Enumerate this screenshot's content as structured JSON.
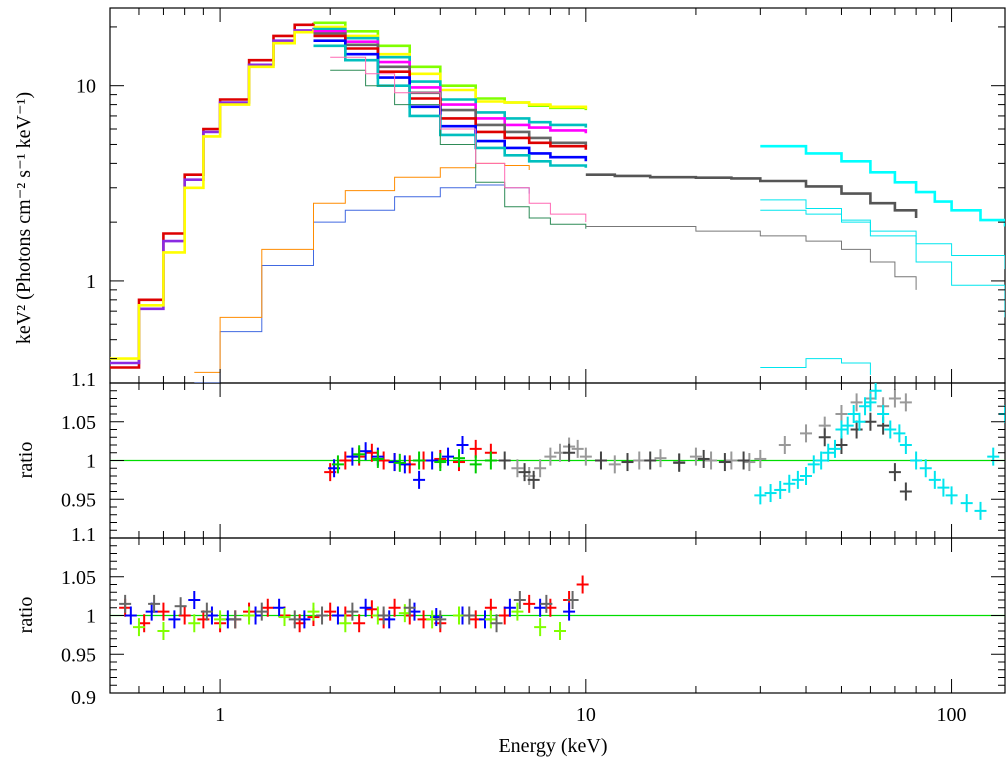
{
  "chart_data": [
    {
      "panel": "spectrum",
      "type": "line",
      "xscale": "log",
      "yscale": "log",
      "xlim": [
        0.5,
        140
      ],
      "ylim": [
        0.3,
        25
      ],
      "ylabel": "keV² (Photons cm⁻² s⁻¹ keV⁻¹)",
      "xlabel": "",
      "yticklabels": [
        "1",
        "10"
      ],
      "grid": false,
      "colors": [
        "#ff0000",
        "#8a2be2",
        "#666666",
        "#ffff00",
        "#80ff00",
        "#00bfbf",
        "#ff00ff",
        "#ff8c00",
        "#0000ff",
        "#00ff7f",
        "#999999",
        "#00ffff"
      ],
      "series": [
        {
          "color": "#dd0000",
          "x": [
            0.5,
            0.6,
            0.7,
            0.8,
            0.9,
            1.0,
            1.2,
            1.4,
            1.6,
            1.8
          ],
          "y": [
            0.36,
            0.8,
            1.75,
            3.5,
            6.0,
            8.5,
            13.5,
            18.0,
            20.5,
            21.0
          ]
        },
        {
          "color": "#8a2be2",
          "x": [
            0.5,
            0.6,
            0.7,
            0.8,
            0.9,
            1.0,
            1.2,
            1.4,
            1.6,
            1.8
          ],
          "y": [
            0.38,
            0.72,
            1.6,
            3.3,
            5.8,
            8.2,
            12.8,
            17.0,
            19.2,
            19.8
          ]
        },
        {
          "color": "#ffff00",
          "x": [
            0.5,
            0.6,
            0.7,
            0.8,
            0.9,
            1.0,
            1.2,
            1.4,
            1.6,
            1.8
          ],
          "y": [
            0.4,
            0.75,
            1.4,
            3.0,
            5.5,
            8.0,
            12.5,
            16.5,
            18.8,
            19.5
          ]
        },
        {
          "color": "#80ff00",
          "x": [
            1.8,
            2.2,
            2.7,
            3.3,
            4.0,
            5.0,
            6.0,
            7.0,
            8.0,
            10.0
          ],
          "y": [
            21.0,
            19.0,
            16.0,
            12.5,
            10.0,
            8.6,
            8.2,
            7.9,
            7.7,
            7.5
          ]
        },
        {
          "color": "#ffff00",
          "x": [
            1.8,
            2.2,
            2.7,
            3.3,
            4.0,
            5.0,
            6.0,
            7.0,
            8.0,
            10.0
          ],
          "y": [
            20.0,
            18.0,
            14.5,
            11.5,
            9.5,
            8.3,
            8.2,
            8.0,
            7.8,
            7.6
          ]
        },
        {
          "color": "#00bfbf",
          "x": [
            1.8,
            2.2,
            2.7,
            3.3,
            4.0,
            5.0,
            6.0,
            7.0,
            8.0,
            10.0
          ],
          "y": [
            19.5,
            17.5,
            14.0,
            10.5,
            8.5,
            7.3,
            6.8,
            6.5,
            6.3,
            6.1
          ]
        },
        {
          "color": "#ff00ff",
          "x": [
            1.8,
            2.2,
            2.7,
            3.3,
            4.0,
            5.0,
            6.0,
            7.0,
            8.0,
            10.0
          ],
          "y": [
            19.0,
            16.8,
            13.2,
            9.8,
            8.0,
            6.8,
            6.3,
            6.1,
            5.9,
            5.7
          ]
        },
        {
          "color": "#666666",
          "x": [
            1.8,
            2.2,
            2.7,
            3.3,
            4.0,
            5.0,
            6.0,
            7.0,
            8.0,
            10.0
          ],
          "y": [
            18.5,
            16.2,
            12.5,
            9.2,
            7.5,
            6.3,
            5.8,
            5.4,
            5.1,
            4.9
          ]
        },
        {
          "color": "#dd0000",
          "x": [
            1.8,
            2.2,
            2.7,
            3.3,
            4.0,
            5.0,
            6.0,
            7.0,
            8.0,
            10.0
          ],
          "y": [
            18.0,
            15.5,
            11.8,
            8.6,
            6.8,
            5.8,
            5.4,
            5.1,
            4.9,
            4.7
          ]
        },
        {
          "color": "#0000ff",
          "x": [
            1.8,
            2.2,
            2.7,
            3.3,
            4.0,
            5.0,
            6.0,
            7.0,
            8.0,
            10.0
          ],
          "y": [
            17.0,
            14.5,
            11.0,
            7.8,
            6.2,
            5.2,
            4.8,
            4.5,
            4.3,
            4.1
          ]
        },
        {
          "color": "#00bfbf",
          "x": [
            1.8,
            2.2,
            2.7,
            3.3,
            4.0,
            5.0,
            6.0,
            7.0,
            8.0,
            10.0
          ],
          "y": [
            16.0,
            13.5,
            10.0,
            7.0,
            5.6,
            4.8,
            4.4,
            4.1,
            3.9,
            3.8
          ]
        },
        {
          "color": "#555555",
          "x": [
            10,
            12,
            15,
            20,
            25,
            30,
            40,
            50,
            60,
            70,
            80
          ],
          "y": [
            3.5,
            3.45,
            3.4,
            3.38,
            3.35,
            3.25,
            3.05,
            2.8,
            2.5,
            2.3,
            2.1
          ]
        },
        {
          "color": "#00ffff",
          "x": [
            30,
            40,
            50,
            60,
            70,
            80,
            90,
            100,
            120,
            140
          ],
          "y": [
            4.9,
            4.5,
            4.1,
            3.6,
            3.2,
            2.85,
            2.55,
            2.3,
            2.05,
            1.9
          ]
        },
        {
          "color": "#4169e1",
          "x": [
            0.85,
            1.0,
            1.3,
            1.8,
            2.2,
            3.0,
            4.0,
            5.0,
            6.0,
            7.0
          ],
          "y": [
            0.3,
            0.55,
            1.2,
            2.0,
            2.3,
            2.7,
            3.0,
            3.1,
            3.0,
            2.8
          ]
        },
        {
          "color": "#ff8c00",
          "x": [
            0.85,
            1.0,
            1.3,
            1.8,
            2.2,
            3.0,
            4.0,
            5.0,
            6.0,
            7.0
          ],
          "y": [
            0.34,
            0.65,
            1.45,
            2.5,
            2.9,
            3.4,
            3.8,
            4.0,
            3.9,
            3.7
          ]
        },
        {
          "color": "#2e8b57",
          "x": [
            2.0,
            2.5,
            3.0,
            4.0,
            5.0,
            6.0,
            7.0,
            8.0,
            10.0
          ],
          "y": [
            12.0,
            10.0,
            8.0,
            5.0,
            3.2,
            2.4,
            2.1,
            1.95,
            1.85
          ]
        },
        {
          "color": "#ff69b4",
          "x": [
            2.0,
            2.5,
            3.0,
            4.0,
            5.0,
            6.0,
            7.0,
            8.0,
            10.0
          ],
          "y": [
            14.0,
            11.5,
            9.2,
            6.0,
            4.0,
            3.0,
            2.5,
            2.2,
            2.0
          ]
        },
        {
          "color": "#777777",
          "x": [
            10,
            20,
            30,
            40,
            50,
            60,
            70,
            80
          ],
          "y": [
            1.9,
            1.8,
            1.7,
            1.6,
            1.45,
            1.25,
            1.05,
            0.9
          ]
        },
        {
          "color": "#00e5ee",
          "x": [
            30,
            40,
            50,
            60,
            80,
            100,
            140
          ],
          "y": [
            2.3,
            2.2,
            2.0,
            1.8,
            1.55,
            1.35,
            1.15
          ]
        },
        {
          "color": "#00e5ee",
          "x": [
            30,
            40,
            50,
            60,
            80,
            100,
            140
          ],
          "y": [
            2.6,
            2.35,
            2.05,
            1.7,
            1.25,
            0.95,
            0.65
          ]
        },
        {
          "color": "#00e5ee",
          "x": [
            30,
            40,
            50,
            60
          ],
          "y": [
            0.36,
            0.4,
            0.38,
            0.33
          ]
        }
      ]
    },
    {
      "panel": "ratio-top",
      "type": "scatter",
      "xscale": "log",
      "xlim": [
        0.5,
        140
      ],
      "ylim": [
        0.9,
        1.1
      ],
      "ylabel": "ratio",
      "yticklabels": [
        "0.95",
        "1",
        "1.05",
        "1.1"
      ],
      "reference_line": 1,
      "reference_color": "#00dd00",
      "series": [
        {
          "color": "#ff0000",
          "x": [
            2.0,
            2.2,
            2.4,
            2.6,
            2.8,
            3.0,
            3.3,
            3.6,
            4.0,
            4.5,
            5.0,
            5.5
          ],
          "y": [
            0.985,
            1.0,
            1.005,
            1.01,
            1.0,
            0.998,
            0.995,
            1.0,
            1.002,
            0.998,
            1.015,
            1.01
          ]
        },
        {
          "color": "#0000ff",
          "x": [
            2.05,
            2.3,
            2.5,
            2.7,
            3.0,
            3.2,
            3.5,
            3.8,
            4.2,
            4.6
          ],
          "y": [
            0.99,
            1.005,
            1.012,
            1.005,
            0.998,
            0.995,
            0.975,
            1.0,
            1.005,
            1.02
          ]
        },
        {
          "color": "#00cc00",
          "x": [
            2.1,
            2.4,
            2.7,
            3.1,
            3.5,
            4.0,
            4.5,
            5.0,
            5.5
          ],
          "y": [
            0.995,
            1.008,
            1.002,
            0.997,
            1.0,
            0.998,
            1.003,
            0.995,
            1.0
          ]
        },
        {
          "color": "#999999",
          "x": [
            6.5,
            7.0,
            7.5,
            8.0,
            8.5,
            9.0,
            9.5,
            10,
            12,
            14,
            16,
            18,
            20,
            22,
            25,
            28,
            30,
            35,
            40,
            45,
            50,
            55,
            60,
            65,
            70,
            75
          ],
          "y": [
            0.99,
            0.98,
            0.99,
            1.005,
            1.01,
            1.018,
            1.015,
            1.005,
            0.995,
            1.0,
            1.003,
            0.998,
            1.005,
            1.0,
            1.0,
            0.998,
            1.002,
            1.02,
            1.035,
            1.045,
            1.06,
            1.075,
            1.08,
            1.07,
            1.08,
            1.075
          ]
        },
        {
          "color": "#444444",
          "x": [
            6.0,
            6.8,
            7.2,
            9.0,
            11,
            13,
            15,
            18,
            21,
            24,
            27,
            45,
            50,
            55,
            60,
            65,
            70,
            75
          ],
          "y": [
            1.0,
            0.985,
            0.975,
            1.01,
            1.0,
            0.998,
            1.0,
            0.997,
            1.002,
            0.998,
            1.0,
            1.03,
            1.02,
            1.04,
            1.05,
            1.045,
            0.985,
            0.96
          ]
        },
        {
          "color": "#00e5ee",
          "x": [
            30,
            32,
            34,
            36,
            38,
            40,
            42,
            44,
            46,
            48,
            50,
            52,
            54,
            56,
            58,
            60,
            62,
            65,
            68,
            72,
            75,
            80,
            85,
            90,
            95,
            100,
            110,
            120,
            130,
            140
          ],
          "y": [
            0.955,
            0.958,
            0.962,
            0.97,
            0.975,
            0.98,
            0.995,
            1.0,
            1.01,
            1.015,
            1.04,
            1.045,
            1.06,
            1.05,
            1.07,
            1.075,
            1.09,
            1.06,
            1.04,
            1.035,
            1.02,
            1.0,
            0.99,
            0.975,
            0.965,
            0.955,
            0.945,
            0.935,
            1.005,
            1.06
          ]
        }
      ]
    },
    {
      "panel": "ratio-bottom",
      "type": "scatter",
      "xscale": "log",
      "xlim": [
        0.5,
        140
      ],
      "ylim": [
        0.9,
        1.1
      ],
      "ylabel": "ratio",
      "xlabel": "Energy (keV)",
      "yticklabels": [
        "0.9",
        "0.95",
        "1",
        "1.05",
        "1.1"
      ],
      "xticklabels": [
        "1",
        "10",
        "100"
      ],
      "reference_line": 1,
      "reference_color": "#00dd00",
      "series": [
        {
          "color": "#ff0000",
          "x": [
            0.55,
            0.62,
            0.7,
            0.8,
            0.9,
            1.0,
            1.1,
            1.2,
            1.35,
            1.5,
            1.65,
            1.8,
            2.0,
            2.2,
            2.4,
            2.6,
            2.8,
            3.0,
            3.3,
            3.6,
            4.0,
            4.5,
            5.0,
            5.5,
            6.0,
            7.0,
            8.0,
            9.0,
            9.8
          ],
          "y": [
            1.01,
            0.99,
            1.005,
            1.0,
            0.995,
            0.99,
            0.995,
            1.005,
            1.01,
            1.0,
            0.99,
            0.998,
            1.005,
            1.0,
            0.99,
            1.008,
            0.995,
            1.01,
            1.0,
            0.995,
            0.99,
            1.0,
            0.995,
            1.01,
            1.0,
            1.015,
            1.01,
            1.02,
            1.04
          ]
        },
        {
          "color": "#0000ff",
          "x": [
            0.57,
            0.65,
            0.75,
            0.85,
            0.95,
            1.05,
            1.25,
            1.45,
            1.7,
            2.1,
            2.5,
            2.9,
            3.4,
            3.9,
            4.6,
            5.3,
            6.2,
            7.5,
            9.0
          ],
          "y": [
            1.0,
            1.005,
            0.995,
            1.02,
            1.0,
            0.995,
            1.0,
            1.01,
            0.995,
            1.0,
            1.01,
            0.995,
            1.005,
            0.998,
            1.0,
            0.995,
            1.01,
            1.01,
            1.005
          ]
        },
        {
          "color": "#80ff00",
          "x": [
            0.6,
            0.7,
            0.85,
            1.0,
            1.2,
            1.5,
            1.8,
            2.2,
            2.7,
            3.2,
            3.8,
            4.5,
            5.5,
            6.5,
            7.5,
            8.5
          ],
          "y": [
            0.985,
            0.98,
            0.99,
            0.995,
            1.0,
            0.998,
            1.005,
            0.99,
            1.0,
            1.003,
            0.995,
            1.0,
            0.995,
            1.005,
            0.985,
            0.98
          ]
        },
        {
          "color": "#666666",
          "x": [
            0.55,
            0.66,
            0.78,
            0.92,
            1.1,
            1.3,
            1.6,
            1.9,
            2.3,
            2.8,
            3.3,
            4.0,
            4.8,
            5.7,
            6.6,
            7.8,
            9.2
          ],
          "y": [
            1.015,
            1.015,
            1.012,
            1.005,
            0.995,
            1.005,
            0.995,
            1.0,
            1.005,
            1.0,
            1.01,
            0.995,
            1.0,
            0.99,
            1.02,
            1.015,
            1.02
          ]
        }
      ]
    }
  ]
}
